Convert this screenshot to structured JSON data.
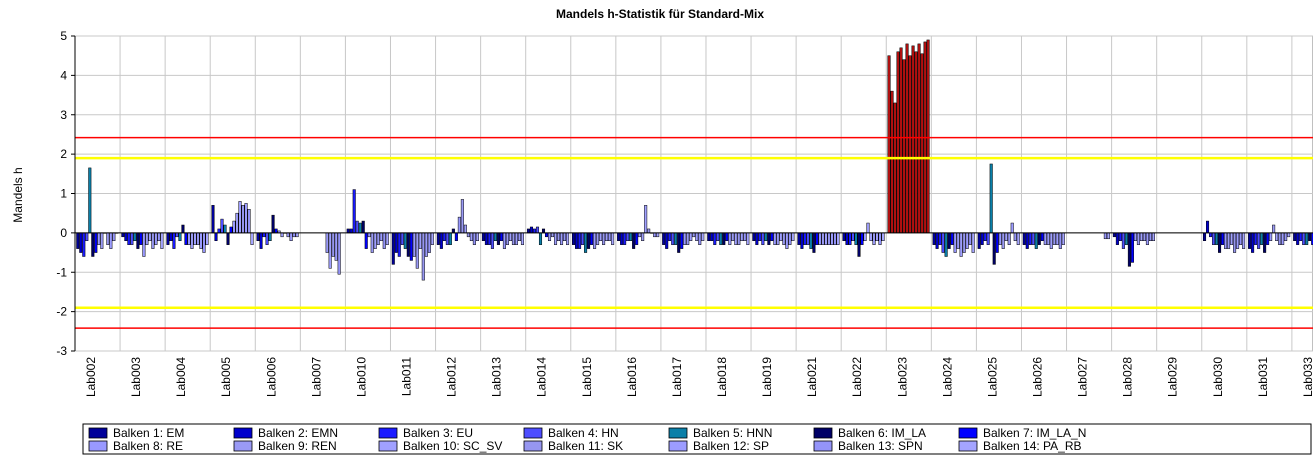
{
  "chart_data": {
    "type": "bar",
    "title": "Mandels h-Statistik für Standard-Mix",
    "y_label": "Mandels h",
    "categories": [
      "Lab002",
      "Lab003",
      "Lab004",
      "Lab005",
      "Lab006",
      "Lab007",
      "Lab010",
      "Lab011",
      "Lab012",
      "Lab013",
      "Lab014",
      "Lab015",
      "Lab016",
      "Lab017",
      "Lab018",
      "Lab019",
      "Lab021",
      "Lab022",
      "Lab023",
      "Lab024",
      "Lab025",
      "Lab026",
      "Lab027",
      "Lab028",
      "Lab029",
      "Lab030",
      "Lab031",
      "Lab033"
    ],
    "ylim": [
      -3,
      5
    ],
    "yticks": [
      -3,
      -2,
      -1,
      0,
      1,
      2,
      3,
      4,
      5
    ],
    "grid": true,
    "reference_lines": [
      {
        "value": 2.42,
        "color": "#ff0000"
      },
      {
        "value": 1.9,
        "color": "#ffff00"
      },
      {
        "value": -1.9,
        "color": "#ffff00"
      },
      {
        "value": -2.42,
        "color": "#ff0000"
      }
    ],
    "exceed_color": "#b01010",
    "series": [
      {
        "name": "Balken 1: EM",
        "color": "#000099",
        "values": [
          -0.4,
          -0.1,
          -0.3,
          0.7,
          -0.2,
          null,
          0.1,
          -0.8,
          -0.3,
          -0.2,
          0.1,
          -0.3,
          -0.2,
          -0.3,
          -0.2,
          -0.2,
          -0.3,
          -0.2,
          4.5,
          -0.3,
          -0.4,
          -0.3,
          null,
          -0.1,
          null,
          -0.2,
          -0.4,
          -0.2
        ]
      },
      {
        "name": "Balken 2: EMN",
        "color": "#0000cc",
        "values": [
          -0.5,
          -0.2,
          -0.2,
          -0.2,
          -0.4,
          null,
          0.1,
          -0.5,
          -0.4,
          -0.3,
          0.15,
          -0.4,
          -0.3,
          -0.4,
          -0.2,
          -0.3,
          -0.4,
          -0.3,
          3.6,
          -0.4,
          -0.3,
          -0.4,
          null,
          -0.3,
          null,
          0.3,
          -0.5,
          -0.3
        ]
      },
      {
        "name": "Balken 3: EU",
        "color": "#1a1aff",
        "values": [
          -0.6,
          -0.3,
          -0.4,
          0.1,
          -0.1,
          null,
          1.1,
          -0.6,
          -0.2,
          -0.3,
          0.1,
          -0.4,
          -0.3,
          -0.2,
          -0.3,
          -0.2,
          -0.3,
          -0.3,
          3.3,
          -0.3,
          -0.2,
          -0.3,
          null,
          -0.2,
          null,
          -0.1,
          -0.3,
          -0.2
        ]
      },
      {
        "name": "Balken 4: HN",
        "color": "#4d4dff",
        "values": [
          -0.2,
          -0.3,
          -0.1,
          0.35,
          -0.3,
          null,
          0.3,
          -0.3,
          -0.3,
          -0.4,
          0.15,
          -0.3,
          -0.2,
          -0.3,
          -0.2,
          -0.3,
          -0.3,
          -0.2,
          4.6,
          -0.5,
          -0.3,
          -0.3,
          null,
          -0.4,
          null,
          -0.3,
          -0.4,
          -0.3
        ]
      },
      {
        "name": "Balken 5: HNN",
        "color": "#0a7fa8",
        "values": [
          1.65,
          -0.2,
          -0.2,
          0.2,
          -0.2,
          null,
          0.25,
          -0.4,
          -0.3,
          -0.2,
          -0.3,
          -0.5,
          -0.2,
          -0.3,
          -0.3,
          -0.2,
          -0.4,
          -0.3,
          4.7,
          -0.6,
          1.75,
          -0.4,
          null,
          -0.3,
          null,
          -0.3,
          -0.3,
          -0.3
        ]
      },
      {
        "name": "Balken 6: IM_LA",
        "color": "#000066",
        "values": [
          -0.6,
          -0.4,
          0.2,
          -0.3,
          0.45,
          null,
          0.3,
          -0.6,
          0.1,
          -0.3,
          0.1,
          -0.4,
          -0.4,
          -0.5,
          -0.3,
          -0.3,
          -0.5,
          -0.6,
          4.4,
          -0.4,
          -0.8,
          -0.3,
          null,
          -0.85,
          null,
          -0.5,
          -0.5,
          -0.2
        ]
      },
      {
        "name": "Balken 7: IM_LA_N",
        "color": "#0000ff",
        "values": [
          -0.5,
          -0.3,
          -0.3,
          0.15,
          0.1,
          null,
          -0.4,
          -0.7,
          -0.2,
          -0.2,
          -0.1,
          -0.3,
          -0.3,
          -0.4,
          -0.2,
          -0.2,
          -0.3,
          -0.3,
          4.8,
          -0.3,
          -0.5,
          -0.2,
          null,
          -0.75,
          null,
          -0.3,
          -0.3,
          -0.3
        ]
      },
      {
        "name": "Balken 8: RE",
        "color": "#9999ff",
        "values": [
          -0.3,
          -0.6,
          -0.3,
          0.3,
          0.05,
          null,
          -0.1,
          -0.6,
          0.4,
          -0.4,
          -0.2,
          -0.4,
          -0.1,
          -0.3,
          -0.3,
          -0.3,
          -0.3,
          -0.2,
          4.5,
          -0.5,
          -0.3,
          -0.3,
          null,
          -0.2,
          null,
          -0.4,
          -0.2,
          -0.2
        ]
      },
      {
        "name": "Balken 9: REN",
        "color": "#9a9af5",
        "values": [
          -0.4,
          -0.3,
          -0.4,
          0.5,
          -0.1,
          -0.5,
          -0.5,
          -0.9,
          0.85,
          -0.3,
          -0.1,
          -0.3,
          -0.2,
          -0.3,
          -0.2,
          -0.3,
          -0.3,
          0.25,
          4.75,
          -0.4,
          -0.4,
          -0.3,
          null,
          -0.3,
          null,
          -0.4,
          0.2,
          -0.3
        ]
      },
      {
        "name": "Balken 10: SC_SV",
        "color": "#a0a0ff",
        "values": [
          0.0,
          -0.2,
          -0.3,
          0.8,
          0.0,
          -0.9,
          -0.4,
          -0.4,
          0.2,
          -0.2,
          -0.3,
          -0.2,
          0.7,
          -0.2,
          -0.3,
          -0.2,
          -0.3,
          -0.2,
          4.6,
          -0.6,
          -0.2,
          -0.4,
          null,
          -0.2,
          null,
          -0.3,
          -0.2,
          -0.2
        ]
      },
      {
        "name": "Balken 11: SK",
        "color": "#9696f0",
        "values": [
          -0.3,
          -0.4,
          -0.3,
          0.7,
          -0.1,
          -0.6,
          -0.3,
          -1.2,
          -0.1,
          -0.3,
          -0.2,
          -0.3,
          0.1,
          -0.1,
          -0.3,
          -0.3,
          -0.3,
          -0.3,
          4.8,
          -0.5,
          -0.3,
          -0.3,
          null,
          -0.2,
          null,
          -0.5,
          -0.3,
          -0.1
        ]
      },
      {
        "name": "Balken 12: SP",
        "color": "#9c9cff",
        "values": [
          -0.4,
          -0.3,
          -0.4,
          0.75,
          -0.2,
          -0.7,
          -0.2,
          -0.6,
          -0.2,
          -0.3,
          -0.3,
          -0.2,
          0.0,
          -0.2,
          -0.2,
          -0.4,
          -0.3,
          -0.2,
          4.55,
          -0.4,
          0.25,
          -0.3,
          null,
          -0.3,
          null,
          -0.4,
          -0.3,
          -0.2
        ]
      },
      {
        "name": "Balken 13: SPN",
        "color": "#9494f8",
        "values": [
          -0.2,
          -0.2,
          -0.5,
          0.6,
          -0.1,
          -1.05,
          -0.4,
          -0.5,
          -0.3,
          -0.2,
          -0.2,
          -0.2,
          -0.1,
          -0.3,
          -0.2,
          -0.3,
          -0.3,
          -0.3,
          4.85,
          -0.3,
          -0.2,
          -0.4,
          -0.15,
          -0.2,
          null,
          -0.3,
          -0.2,
          -0.2
        ]
      },
      {
        "name": "Balken 14: PA_RB",
        "color": "#a4a4ff",
        "values": [
          0.0,
          -0.4,
          -0.3,
          -0.3,
          -0.1,
          null,
          -0.3,
          -0.3,
          -0.2,
          -0.3,
          -0.3,
          -0.3,
          -0.1,
          -0.2,
          -0.3,
          -0.2,
          -0.3,
          -0.2,
          4.9,
          -0.5,
          -0.3,
          -0.3,
          -0.15,
          -0.2,
          null,
          -0.4,
          -0.1,
          -0.3
        ]
      }
    ]
  }
}
